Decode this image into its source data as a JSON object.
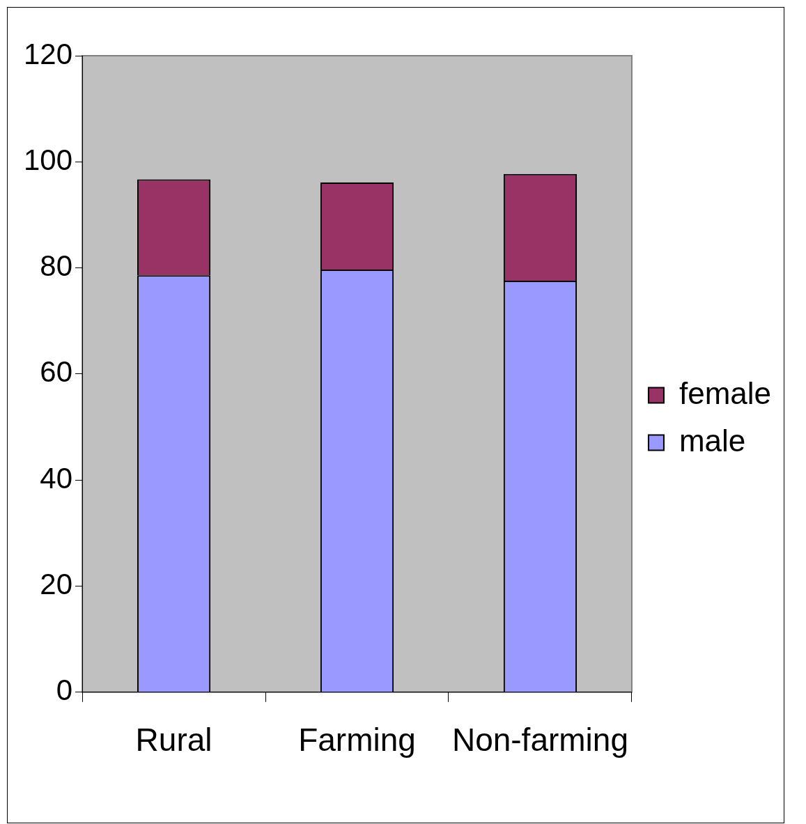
{
  "chart_data": {
    "type": "bar",
    "stacked": true,
    "categories": [
      "Rural",
      "Farming",
      "Non-farming"
    ],
    "series": [
      {
        "name": "male",
        "color": "#9999ff",
        "values": [
          78.6,
          79.7,
          77.6
        ]
      },
      {
        "name": "female",
        "color": "#993366",
        "values": [
          18.1,
          16.4,
          20.1
        ]
      }
    ],
    "ylim": [
      0,
      120
    ],
    "yticks": [
      0,
      20,
      40,
      60,
      80,
      100,
      120
    ],
    "grid": false,
    "legend": "right"
  }
}
